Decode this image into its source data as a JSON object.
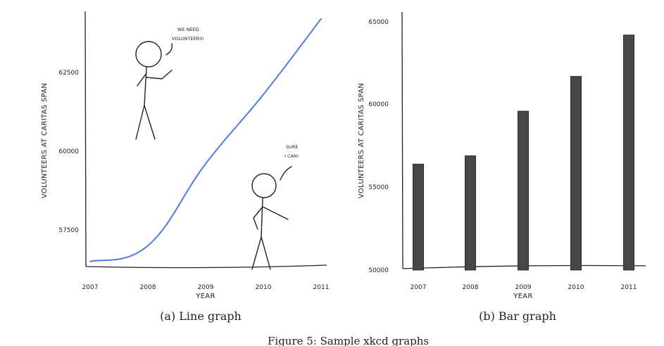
{
  "colors": {
    "line": "#4F79E0",
    "bar": "#474747",
    "ink": "#222222"
  },
  "chart_data": [
    {
      "type": "line",
      "xlabel": "YEAR",
      "ylabel": "VOLUNTEERS AT CARITAS SPAN",
      "x_ticks": [
        "2007",
        "2008",
        "2009",
        "2010",
        "2011"
      ],
      "y_ticks": [
        "57500",
        "60000",
        "62500"
      ],
      "x": [
        2007,
        2008,
        2009,
        2010,
        2011
      ],
      "y": [
        56500,
        57000,
        59600,
        61800,
        64200
      ],
      "xlim": [
        2007,
        2011
      ],
      "ylim": [
        56400,
        64300
      ],
      "grid": false,
      "annotations": [
        {
          "lines": [
            "WE NEED",
            "VOLUNTEERS!"
          ]
        },
        {
          "lines": [
            "SURE",
            "I CAN!"
          ]
        }
      ],
      "caption": "(a) Line graph"
    },
    {
      "type": "bar",
      "xlabel": "YEAR",
      "ylabel": "VOLUNTEERS AT CARITAS SPAN",
      "categories": [
        "2007",
        "2008",
        "2009",
        "2010",
        "2011"
      ],
      "values": [
        56400,
        56900,
        59600,
        61700,
        64200
      ],
      "y_ticks": [
        "50000",
        "55000",
        "60000",
        "65000"
      ],
      "ylim": [
        50000,
        65000
      ],
      "grid": false,
      "caption": "(b) Bar graph"
    }
  ],
  "figure_caption": "Figure 5: Sample xkcd graphs"
}
